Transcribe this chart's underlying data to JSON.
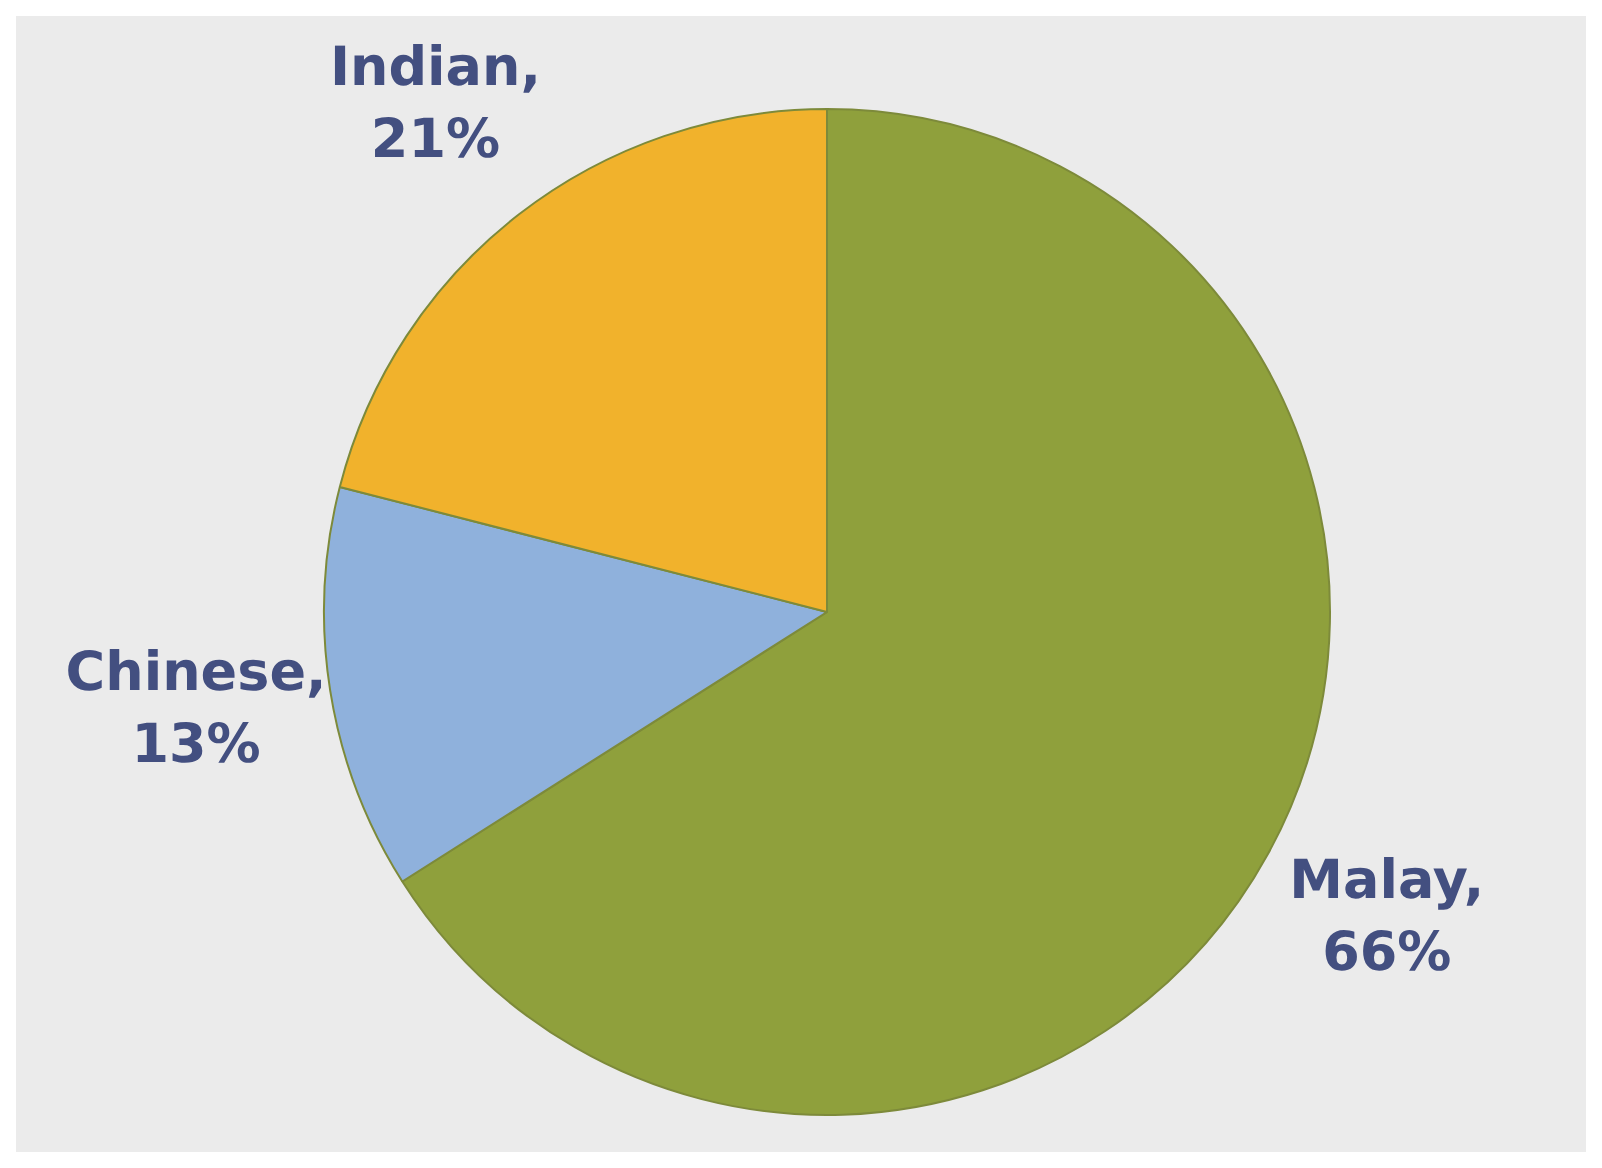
{
  "chart_data": {
    "type": "pie",
    "categories": [
      "Malay",
      "Chinese",
      "Indian"
    ],
    "values": [
      66,
      13,
      21
    ],
    "colors": [
      "#8fa03c",
      "#8fb1dc",
      "#f1b22c"
    ],
    "value_labels": [
      ", 66%",
      ", 13%",
      ", 21%"
    ],
    "legend": false
  }
}
